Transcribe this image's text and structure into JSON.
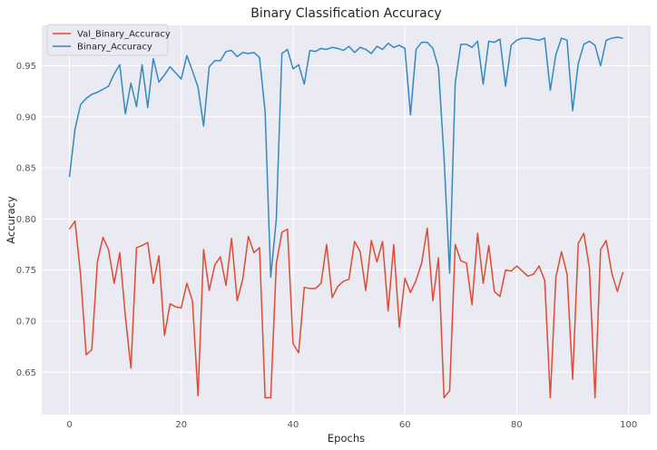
{
  "chart_data": {
    "type": "line",
    "title": "Binary Classification Accuracy",
    "xlabel": "Epochs",
    "ylabel": "Accuracy",
    "xlim": [
      -4.95,
      103.95
    ],
    "ylim": [
      0.6085,
      0.9895
    ],
    "xticks": [
      0,
      20,
      40,
      60,
      80,
      100
    ],
    "yticks": [
      0.65,
      0.7,
      0.75,
      0.8,
      0.85,
      0.9,
      0.95
    ],
    "grid": true,
    "legend_position": "top-left",
    "x": [
      0,
      1,
      2,
      3,
      4,
      5,
      6,
      7,
      8,
      9,
      10,
      11,
      12,
      13,
      14,
      15,
      16,
      17,
      18,
      19,
      20,
      21,
      22,
      23,
      24,
      25,
      26,
      27,
      28,
      29,
      30,
      31,
      32,
      33,
      34,
      35,
      36,
      37,
      38,
      39,
      40,
      41,
      42,
      43,
      44,
      45,
      46,
      47,
      48,
      49,
      50,
      51,
      52,
      53,
      54,
      55,
      56,
      57,
      58,
      59,
      60,
      61,
      62,
      63,
      64,
      65,
      66,
      67,
      68,
      69,
      70,
      71,
      72,
      73,
      74,
      75,
      76,
      77,
      78,
      79,
      80,
      81,
      82,
      83,
      84,
      85,
      86,
      87,
      88,
      89,
      90,
      91,
      92,
      93,
      94,
      95,
      96,
      97,
      98,
      99
    ],
    "series": [
      {
        "name": "Val_Binary_Accuracy",
        "color": "#e24a33",
        "values": [
          0.79,
          0.798,
          0.745,
          0.667,
          0.672,
          0.758,
          0.782,
          0.77,
          0.737,
          0.767,
          0.705,
          0.654,
          0.772,
          0.774,
          0.777,
          0.737,
          0.764,
          0.686,
          0.717,
          0.714,
          0.713,
          0.737,
          0.72,
          0.627,
          0.77,
          0.73,
          0.755,
          0.763,
          0.735,
          0.781,
          0.72,
          0.741,
          0.783,
          0.767,
          0.772,
          0.625,
          0.625,
          0.756,
          0.787,
          0.79,
          0.678,
          0.669,
          0.733,
          0.732,
          0.732,
          0.737,
          0.775,
          0.723,
          0.734,
          0.739,
          0.741,
          0.778,
          0.768,
          0.73,
          0.779,
          0.758,
          0.778,
          0.71,
          0.775,
          0.694,
          0.742,
          0.728,
          0.74,
          0.757,
          0.791,
          0.72,
          0.762,
          0.625,
          0.632,
          0.775,
          0.759,
          0.757,
          0.716,
          0.786,
          0.737,
          0.774,
          0.729,
          0.724,
          0.75,
          0.749,
          0.754,
          0.749,
          0.744,
          0.746,
          0.754,
          0.74,
          0.625,
          0.743,
          0.768,
          0.746,
          0.643,
          0.776,
          0.786,
          0.752,
          0.625,
          0.77,
          0.779,
          0.747,
          0.729,
          0.748
        ]
      },
      {
        "name": "Binary_Accuracy",
        "color": "#348abd",
        "values": [
          0.841,
          0.888,
          0.912,
          0.918,
          0.922,
          0.924,
          0.927,
          0.93,
          0.942,
          0.951,
          0.903,
          0.933,
          0.91,
          0.951,
          0.909,
          0.957,
          0.934,
          0.941,
          0.949,
          0.943,
          0.937,
          0.96,
          0.945,
          0.929,
          0.891,
          0.949,
          0.955,
          0.955,
          0.964,
          0.965,
          0.959,
          0.963,
          0.962,
          0.963,
          0.958,
          0.905,
          0.743,
          0.8,
          0.962,
          0.966,
          0.947,
          0.951,
          0.932,
          0.965,
          0.964,
          0.967,
          0.966,
          0.968,
          0.967,
          0.965,
          0.969,
          0.963,
          0.968,
          0.966,
          0.962,
          0.969,
          0.966,
          0.972,
          0.968,
          0.97,
          0.967,
          0.902,
          0.966,
          0.973,
          0.973,
          0.967,
          0.948,
          0.86,
          0.747,
          0.933,
          0.971,
          0.971,
          0.968,
          0.974,
          0.932,
          0.974,
          0.973,
          0.976,
          0.93,
          0.97,
          0.975,
          0.977,
          0.977,
          0.976,
          0.975,
          0.977,
          0.926,
          0.961,
          0.977,
          0.975,
          0.906,
          0.952,
          0.971,
          0.974,
          0.97,
          0.95,
          0.975,
          0.977,
          0.978,
          0.977
        ]
      }
    ]
  }
}
